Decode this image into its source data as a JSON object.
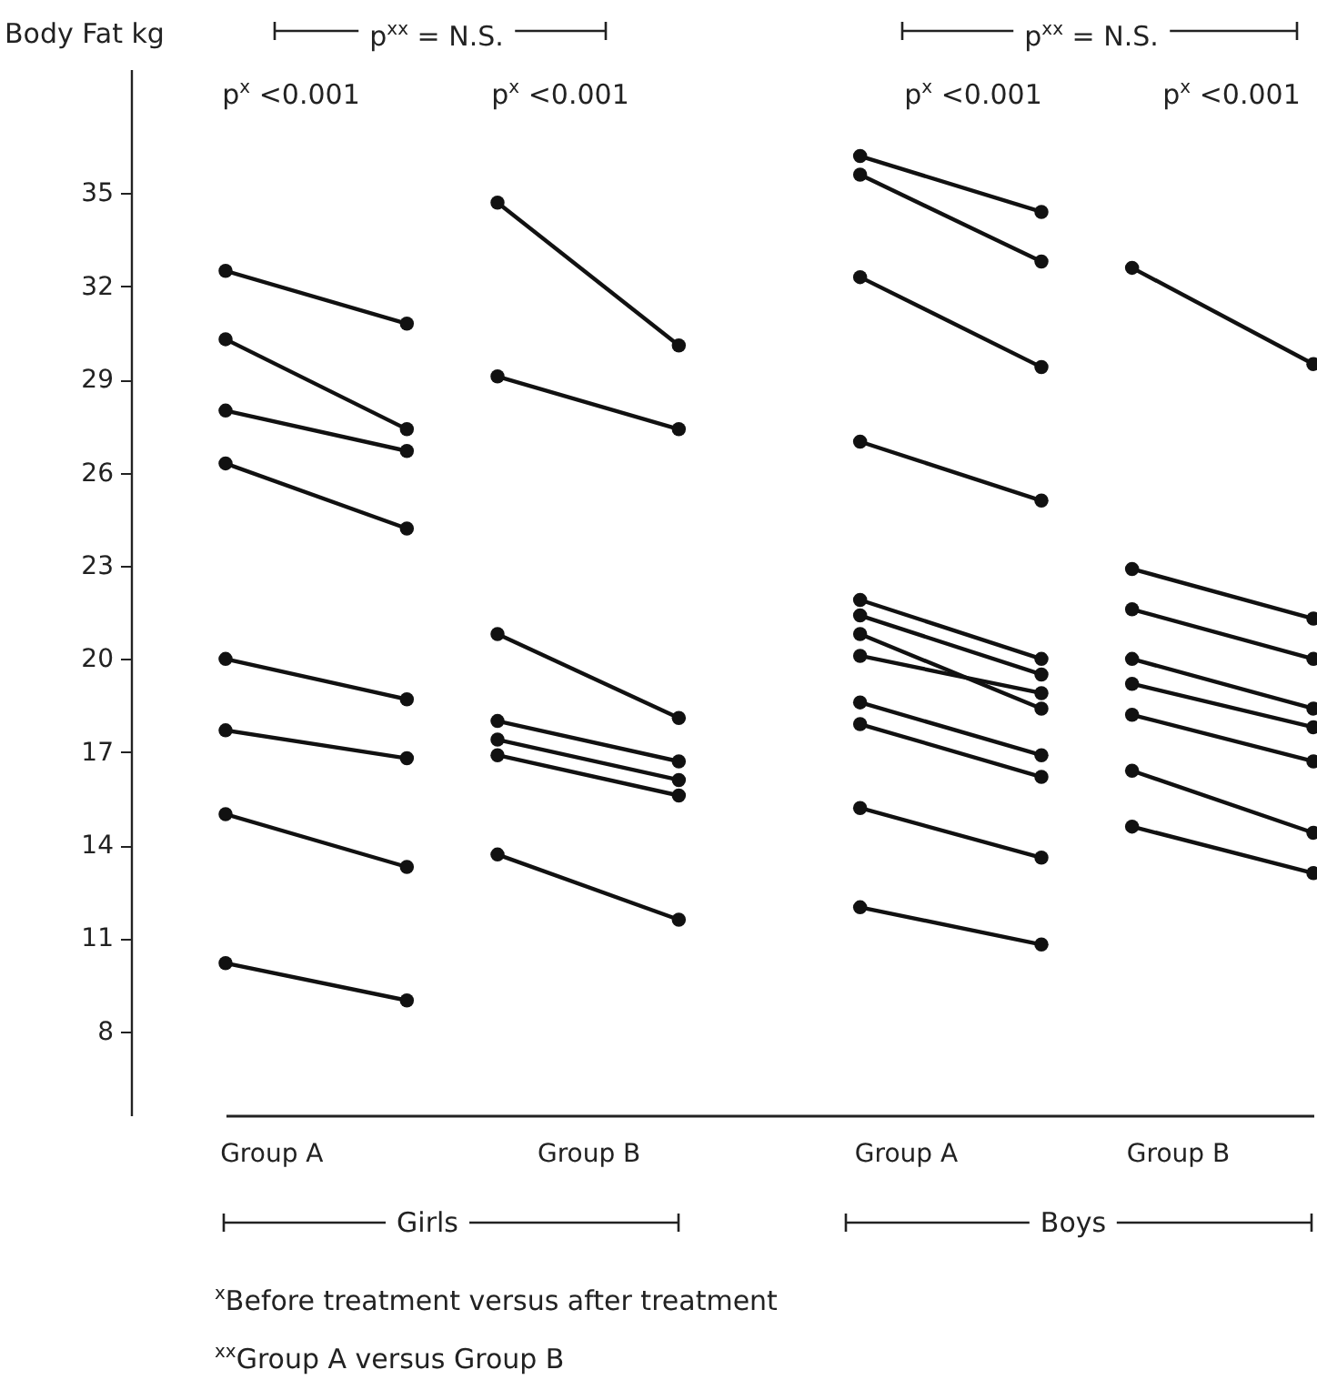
{
  "chart_data": {
    "type": "line",
    "ylabel": "Body Fat kg",
    "categories": [
      null,
      "Group A",
      null,
      null,
      null,
      null,
      null,
      null,
      "Group B",
      null,
      null,
      null,
      null,
      null,
      null,
      "Group A",
      null,
      null,
      null,
      null,
      null,
      "Group B",
      null,
      null,
      null
    ],
    "ylim": [
      5.3,
      39
    ],
    "yticks": [
      8,
      11,
      14,
      17,
      20,
      23,
      26,
      29,
      32,
      35
    ],
    "marker": "circle",
    "line_style": "solid",
    "annotations": [
      "p$^{xx}$ = N.S.",
      "p$^{x}$ <0.001",
      "p$^{x}$ <0.001",
      "p$^{xx}$ = N.S.",
      "p$^{x}$ <0.001",
      "p$^{x}$ <0.001",
      "Girls",
      "Boys",
      "$^{x}$Before treatment versus after treatment",
      "$^{xx}$Group A versus  Group B"
    ],
    "series": [
      {
        "color": "#111111",
        "values": [
          32.5,
          null,
          null,
          null,
          30.8,
          null,
          null,
          null,
          null,
          null,
          null,
          null,
          null,
          null,
          null,
          null,
          null,
          null,
          null,
          null,
          null,
          null,
          null,
          null,
          null
        ]
      },
      {
        "color": "#111111",
        "values": [
          30.3,
          null,
          null,
          null,
          27.4,
          null,
          null,
          null,
          null,
          null,
          null,
          null,
          null,
          null,
          null,
          null,
          null,
          null,
          null,
          null,
          null,
          null,
          null,
          null,
          null
        ]
      },
      {
        "color": "#111111",
        "values": [
          28.0,
          null,
          null,
          null,
          26.7,
          null,
          null,
          null,
          null,
          null,
          null,
          null,
          null,
          null,
          null,
          null,
          null,
          null,
          null,
          null,
          null,
          null,
          null,
          null,
          null
        ]
      },
      {
        "color": "#111111",
        "values": [
          26.3,
          null,
          null,
          null,
          24.2,
          null,
          null,
          null,
          null,
          null,
          null,
          null,
          null,
          null,
          null,
          null,
          null,
          null,
          null,
          null,
          null,
          null,
          null,
          null,
          null
        ]
      },
      {
        "color": "#111111",
        "values": [
          20.0,
          null,
          null,
          null,
          18.7,
          null,
          null,
          null,
          null,
          null,
          null,
          null,
          null,
          null,
          null,
          null,
          null,
          null,
          null,
          null,
          null,
          null,
          null,
          null,
          null
        ]
      },
      {
        "color": "#111111",
        "values": [
          17.7,
          null,
          null,
          null,
          16.8,
          null,
          null,
          null,
          null,
          null,
          null,
          null,
          null,
          null,
          null,
          null,
          null,
          null,
          null,
          null,
          null,
          null,
          null,
          null,
          null
        ]
      },
      {
        "color": "#111111",
        "values": [
          15.0,
          null,
          null,
          null,
          13.3,
          null,
          null,
          null,
          null,
          null,
          null,
          null,
          null,
          null,
          null,
          null,
          null,
          null,
          null,
          null,
          null,
          null,
          null,
          null,
          null
        ]
      },
      {
        "color": "#111111",
        "values": [
          10.2,
          null,
          null,
          null,
          9.0,
          null,
          null,
          null,
          null,
          null,
          null,
          null,
          null,
          null,
          null,
          null,
          null,
          null,
          null,
          null,
          null,
          null,
          null,
          null,
          null
        ]
      },
      {
        "color": "#111111",
        "values": [
          null,
          null,
          null,
          null,
          null,
          null,
          34.7,
          null,
          null,
          null,
          30.1,
          null,
          null,
          null,
          null,
          null,
          null,
          null,
          null,
          null,
          null,
          null,
          null,
          null,
          null
        ]
      },
      {
        "color": "#111111",
        "values": [
          null,
          null,
          null,
          null,
          null,
          null,
          29.1,
          null,
          null,
          null,
          27.4,
          null,
          null,
          null,
          null,
          null,
          null,
          null,
          null,
          null,
          null,
          null,
          null,
          null,
          null
        ]
      },
      {
        "color": "#111111",
        "values": [
          null,
          null,
          null,
          null,
          null,
          null,
          20.8,
          null,
          null,
          null,
          18.1,
          null,
          null,
          null,
          null,
          null,
          null,
          null,
          null,
          null,
          null,
          null,
          null,
          null,
          null
        ]
      },
      {
        "color": "#111111",
        "values": [
          null,
          null,
          null,
          null,
          null,
          null,
          18.0,
          null,
          null,
          null,
          16.7,
          null,
          null,
          null,
          null,
          null,
          null,
          null,
          null,
          null,
          null,
          null,
          null,
          null,
          null
        ]
      },
      {
        "color": "#111111",
        "values": [
          null,
          null,
          null,
          null,
          null,
          null,
          17.4,
          null,
          null,
          null,
          16.1,
          null,
          null,
          null,
          null,
          null,
          null,
          null,
          null,
          null,
          null,
          null,
          null,
          null,
          null
        ]
      },
      {
        "color": "#111111",
        "values": [
          null,
          null,
          null,
          null,
          null,
          null,
          16.9,
          null,
          null,
          null,
          15.6,
          null,
          null,
          null,
          null,
          null,
          null,
          null,
          null,
          null,
          null,
          null,
          null,
          null,
          null
        ]
      },
      {
        "color": "#111111",
        "values": [
          null,
          null,
          null,
          null,
          null,
          null,
          13.7,
          null,
          null,
          null,
          11.6,
          null,
          null,
          null,
          null,
          null,
          null,
          null,
          null,
          null,
          null,
          null,
          null,
          null,
          null
        ]
      },
      {
        "color": "#111111",
        "values": [
          null,
          null,
          null,
          null,
          null,
          null,
          null,
          null,
          null,
          null,
          null,
          null,
          null,
          null,
          36.2,
          null,
          null,
          null,
          34.4,
          null,
          null,
          null,
          null,
          null,
          null
        ]
      },
      {
        "color": "#111111",
        "values": [
          null,
          null,
          null,
          null,
          null,
          null,
          null,
          null,
          null,
          null,
          null,
          null,
          null,
          null,
          35.6,
          null,
          null,
          null,
          32.8,
          null,
          null,
          null,
          null,
          null,
          null
        ]
      },
      {
        "color": "#111111",
        "values": [
          null,
          null,
          null,
          null,
          null,
          null,
          null,
          null,
          null,
          null,
          null,
          null,
          null,
          null,
          32.3,
          null,
          null,
          null,
          29.4,
          null,
          null,
          null,
          null,
          null,
          null
        ]
      },
      {
        "color": "#111111",
        "values": [
          null,
          null,
          null,
          null,
          null,
          null,
          null,
          null,
          null,
          null,
          null,
          null,
          null,
          null,
          27.0,
          null,
          null,
          null,
          25.1,
          null,
          null,
          null,
          null,
          null,
          null
        ]
      },
      {
        "color": "#111111",
        "values": [
          null,
          null,
          null,
          null,
          null,
          null,
          null,
          null,
          null,
          null,
          null,
          null,
          null,
          null,
          21.9,
          null,
          null,
          null,
          20.0,
          null,
          null,
          null,
          null,
          null,
          null
        ]
      },
      {
        "color": "#111111",
        "values": [
          null,
          null,
          null,
          null,
          null,
          null,
          null,
          null,
          null,
          null,
          null,
          null,
          null,
          null,
          21.4,
          null,
          null,
          null,
          19.5,
          null,
          null,
          null,
          null,
          null,
          null
        ]
      },
      {
        "color": "#111111",
        "values": [
          null,
          null,
          null,
          null,
          null,
          null,
          null,
          null,
          null,
          null,
          null,
          null,
          null,
          null,
          20.8,
          null,
          null,
          null,
          18.4,
          null,
          null,
          null,
          null,
          null,
          null
        ]
      },
      {
        "color": "#111111",
        "values": [
          null,
          null,
          null,
          null,
          null,
          null,
          null,
          null,
          null,
          null,
          null,
          null,
          null,
          null,
          20.1,
          null,
          null,
          null,
          18.9,
          null,
          null,
          null,
          null,
          null,
          null
        ]
      },
      {
        "color": "#111111",
        "values": [
          null,
          null,
          null,
          null,
          null,
          null,
          null,
          null,
          null,
          null,
          null,
          null,
          null,
          null,
          18.6,
          null,
          null,
          null,
          16.9,
          null,
          null,
          null,
          null,
          null,
          null
        ]
      },
      {
        "color": "#111111",
        "values": [
          null,
          null,
          null,
          null,
          null,
          null,
          null,
          null,
          null,
          null,
          null,
          null,
          null,
          null,
          17.9,
          null,
          null,
          null,
          16.2,
          null,
          null,
          null,
          null,
          null,
          null
        ]
      },
      {
        "color": "#111111",
        "values": [
          null,
          null,
          null,
          null,
          null,
          null,
          null,
          null,
          null,
          null,
          null,
          null,
          null,
          null,
          15.2,
          null,
          null,
          null,
          13.6,
          null,
          null,
          null,
          null,
          null,
          null
        ]
      },
      {
        "color": "#111111",
        "values": [
          null,
          null,
          null,
          null,
          null,
          null,
          null,
          null,
          null,
          null,
          null,
          null,
          null,
          null,
          12.0,
          null,
          null,
          null,
          10.8,
          null,
          null,
          null,
          null,
          null,
          null
        ]
      },
      {
        "color": "#111111",
        "values": [
          null,
          null,
          null,
          null,
          null,
          null,
          null,
          null,
          null,
          null,
          null,
          null,
          null,
          null,
          null,
          null,
          null,
          null,
          null,
          null,
          32.6,
          null,
          null,
          null,
          29.5
        ]
      },
      {
        "color": "#111111",
        "values": [
          null,
          null,
          null,
          null,
          null,
          null,
          null,
          null,
          null,
          null,
          null,
          null,
          null,
          null,
          null,
          null,
          null,
          null,
          null,
          null,
          22.9,
          null,
          null,
          null,
          21.3
        ]
      },
      {
        "color": "#111111",
        "values": [
          null,
          null,
          null,
          null,
          null,
          null,
          null,
          null,
          null,
          null,
          null,
          null,
          null,
          null,
          null,
          null,
          null,
          null,
          null,
          null,
          21.6,
          null,
          null,
          null,
          20.0
        ]
      },
      {
        "color": "#111111",
        "values": [
          null,
          null,
          null,
          null,
          null,
          null,
          null,
          null,
          null,
          null,
          null,
          null,
          null,
          null,
          null,
          null,
          null,
          null,
          null,
          null,
          20.0,
          null,
          null,
          null,
          18.4
        ]
      },
      {
        "color": "#111111",
        "values": [
          null,
          null,
          null,
          null,
          null,
          null,
          null,
          null,
          null,
          null,
          null,
          null,
          null,
          null,
          null,
          null,
          null,
          null,
          null,
          null,
          19.2,
          null,
          null,
          null,
          17.8
        ]
      },
      {
        "color": "#111111",
        "values": [
          null,
          null,
          null,
          null,
          null,
          null,
          null,
          null,
          null,
          null,
          null,
          null,
          null,
          null,
          null,
          null,
          null,
          null,
          null,
          null,
          18.2,
          null,
          null,
          null,
          16.7
        ]
      },
      {
        "color": "#111111",
        "values": [
          null,
          null,
          null,
          null,
          null,
          null,
          null,
          null,
          null,
          null,
          null,
          null,
          null,
          null,
          null,
          null,
          null,
          null,
          null,
          null,
          16.4,
          null,
          null,
          null,
          14.4
        ]
      },
      {
        "color": "#111111",
        "values": [
          null,
          null,
          null,
          null,
          null,
          null,
          null,
          null,
          null,
          null,
          null,
          null,
          null,
          null,
          null,
          null,
          null,
          null,
          null,
          null,
          14.6,
          null,
          null,
          null,
          13.1
        ]
      }
    ]
  }
}
